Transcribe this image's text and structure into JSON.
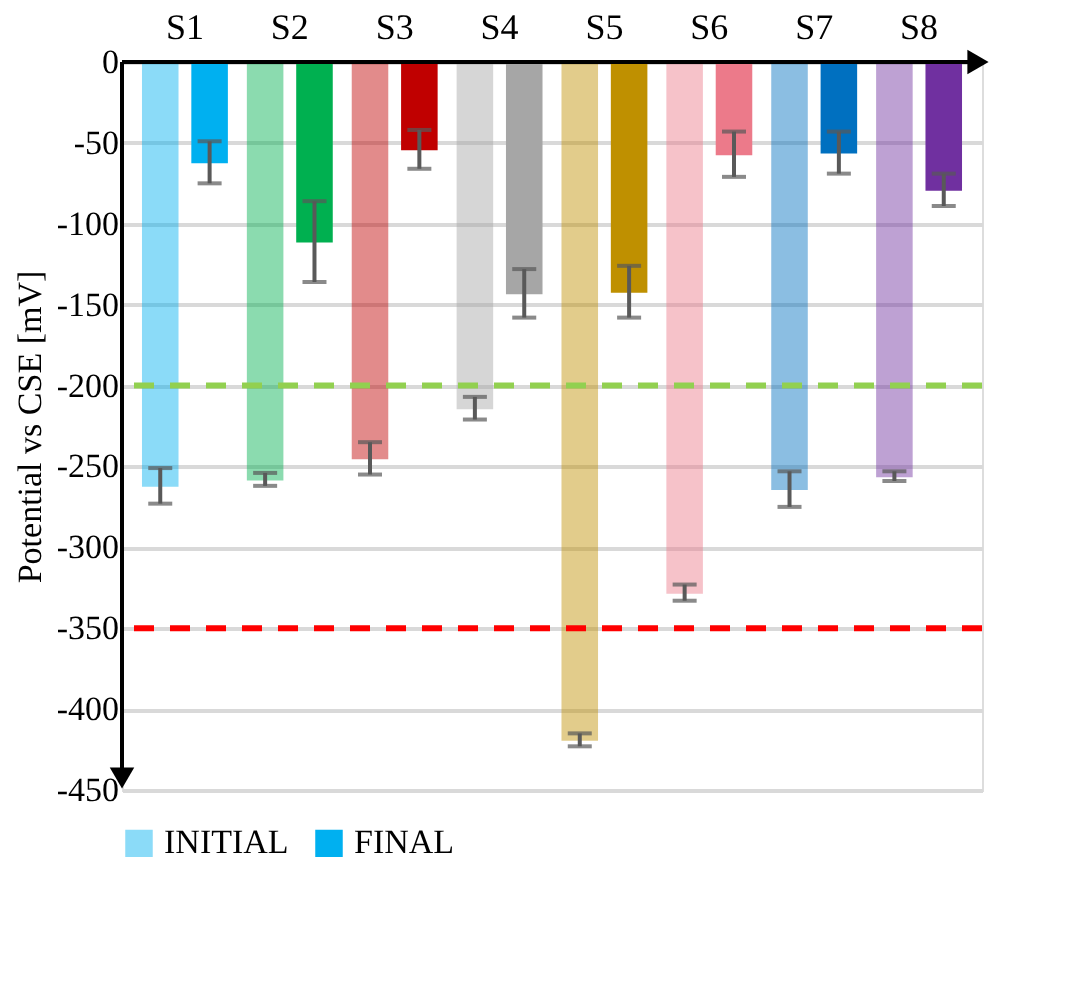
{
  "chart_data": {
    "type": "bar",
    "ylabel": "Potential vs CSE [mV]",
    "categories": [
      "S1",
      "S2",
      "S3",
      "S4",
      "S5",
      "S6",
      "S7",
      "S8"
    ],
    "series": [
      {
        "name": "INITIAL",
        "colors": [
          "#00b0f0",
          "#00b050",
          "#c00000",
          "#a6a6a6",
          "#bf9000",
          "#ec7a8a",
          "#0070c0",
          "#7030a0"
        ],
        "values": [
          -262,
          -258,
          -245,
          -214,
          -419,
          -328,
          -264,
          -256
        ],
        "errors": [
          11,
          4,
          10,
          7,
          4,
          5,
          11,
          3
        ]
      },
      {
        "name": "FINAL",
        "colors": [
          "#00b0f0",
          "#00b050",
          "#c00000",
          "#a6a6a6",
          "#bf9000",
          "#ec7a8a",
          "#0070c0",
          "#7030a0"
        ],
        "values": [
          -62,
          -111,
          -54,
          -143,
          -142,
          -57,
          -56,
          -79
        ],
        "errors": [
          13,
          25,
          12,
          15,
          16,
          14,
          13,
          10
        ]
      }
    ],
    "ylim": [
      -450,
      0
    ],
    "yticks": [
      0,
      -50,
      -100,
      -150,
      -200,
      -250,
      -300,
      -350,
      -400,
      -450
    ],
    "grid": "y",
    "legend": "bottom",
    "ref_lines": [
      {
        "axis": "y",
        "value": -200,
        "color": "#92d050",
        "line_style": "dashed"
      },
      {
        "axis": "y",
        "value": -350,
        "color": "#ff0000",
        "line_style": "dashed"
      }
    ]
  }
}
